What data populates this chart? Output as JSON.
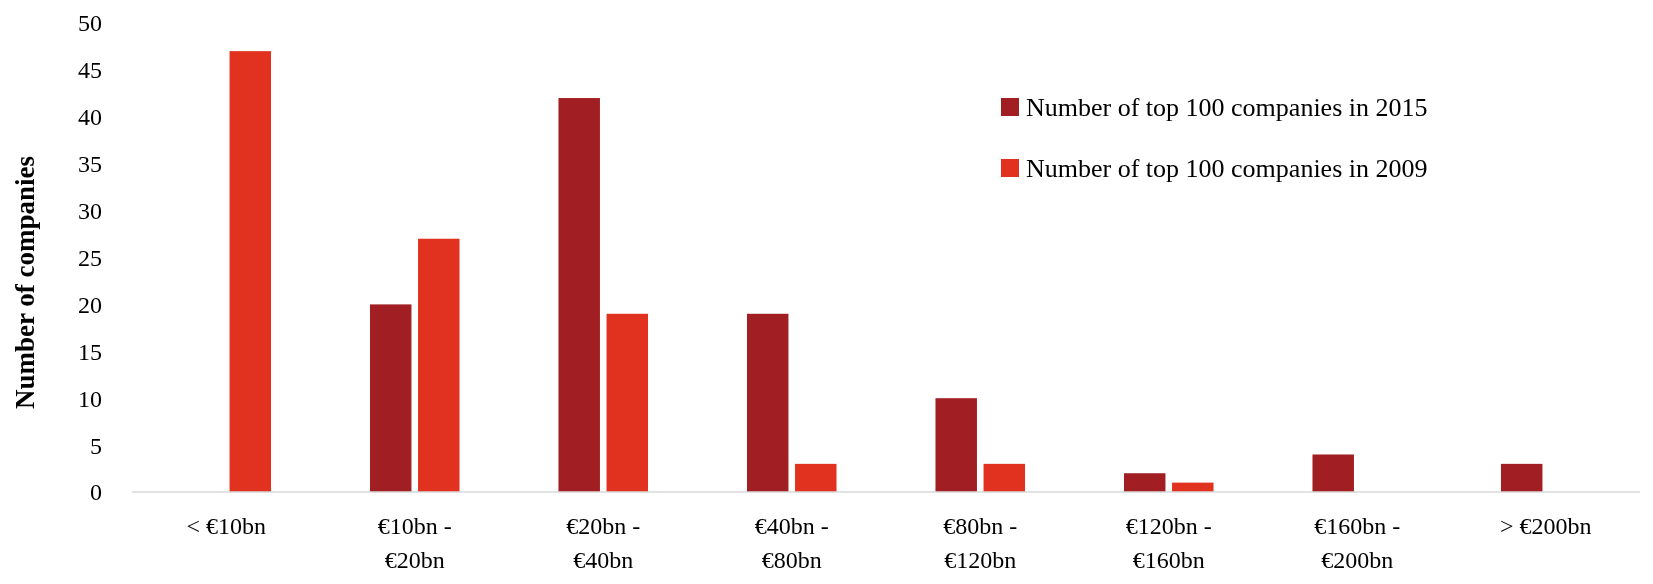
{
  "chart_data": {
    "type": "bar",
    "ylabel": "Number of companies",
    "categories": [
      "< €10bn",
      "€10bn - €20bn",
      "€20bn - €40bn",
      "€40bn - €80bn",
      "€80bn - €120bn",
      "€120bn - €160bn",
      "€160bn - €200bn",
      "> €200bn"
    ],
    "series": [
      {
        "name": "Number of top 100 companies in 2015",
        "color": "#a11f22",
        "values": [
          0,
          20,
          42,
          19,
          10,
          2,
          4,
          3
        ]
      },
      {
        "name": "Number of top 100 companies in 2009",
        "color": "#e0321f",
        "values": [
          47,
          27,
          19,
          3,
          3,
          1,
          0,
          0
        ]
      }
    ],
    "ylim": [
      0,
      50
    ],
    "yticks": [
      0,
      5,
      10,
      15,
      20,
      25,
      30,
      35,
      40,
      45,
      50
    ],
    "grid": false,
    "legend": "top right"
  }
}
